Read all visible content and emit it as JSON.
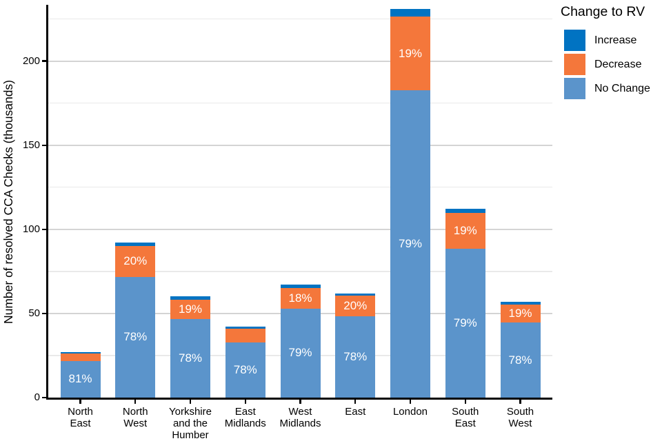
{
  "chart_data": {
    "type": "bar",
    "stacked": true,
    "title": "",
    "xlabel": "",
    "ylabel": "Number of resolved CCA Checks (thousands)",
    "units": "thousands",
    "ylim": [
      0,
      233
    ],
    "grid": true,
    "y_axis": {
      "ticks": [
        0,
        50,
        100,
        150,
        200
      ],
      "minor_gridlines": [
        25,
        75,
        125,
        175,
        225
      ]
    },
    "legend": {
      "title": "Change to RV",
      "position": "top-right",
      "items": [
        {
          "label": "Increase",
          "color": "#0173C2"
        },
        {
          "label": "Decrease",
          "color": "#F4773B"
        },
        {
          "label": "No Change",
          "color": "#5B94CB"
        }
      ]
    },
    "categories": [
      {
        "name": "North East",
        "lines": [
          "North",
          "East"
        ]
      },
      {
        "name": "North West",
        "lines": [
          "North",
          "West"
        ]
      },
      {
        "name": "Yorkshire and the Humber",
        "lines": [
          "Yorkshire",
          "and the",
          "Humber"
        ]
      },
      {
        "name": "East Midlands",
        "lines": [
          "East",
          "Midlands"
        ]
      },
      {
        "name": "West Midlands",
        "lines": [
          "West",
          "Midlands"
        ]
      },
      {
        "name": "East",
        "lines": [
          "East"
        ]
      },
      {
        "name": "London",
        "lines": [
          "London"
        ]
      },
      {
        "name": "South East",
        "lines": [
          "South",
          "East"
        ]
      },
      {
        "name": "South West",
        "lines": [
          "South",
          "West"
        ]
      }
    ],
    "series": [
      {
        "name": "Increase",
        "color": "#0173C2",
        "values": [
          0.8,
          1.8,
          1.8,
          1.2,
          2.0,
          1.2,
          4.6,
          2.2,
          1.7
        ]
      },
      {
        "name": "Decrease",
        "color": "#F4773B",
        "values": [
          4.4,
          18.4,
          11.4,
          8.0,
          12.1,
          12.4,
          43.9,
          21.3,
          10.8
        ]
      },
      {
        "name": "No Change",
        "color": "#5B94CB",
        "values": [
          21.8,
          71.8,
          46.8,
          32.8,
          52.9,
          48.4,
          182.5,
          88.5,
          44.5
        ]
      }
    ],
    "bar_labels": [
      {
        "no_change": "81%",
        "decrease": null
      },
      {
        "no_change": "78%",
        "decrease": "20%"
      },
      {
        "no_change": "78%",
        "decrease": "19%"
      },
      {
        "no_change": "78%",
        "decrease": null
      },
      {
        "no_change": "79%",
        "decrease": "18%"
      },
      {
        "no_change": "78%",
        "decrease": "20%"
      },
      {
        "no_change": "79%",
        "decrease": "19%"
      },
      {
        "no_change": "79%",
        "decrease": "19%"
      },
      {
        "no_change": "78%",
        "decrease": "19%"
      }
    ]
  }
}
